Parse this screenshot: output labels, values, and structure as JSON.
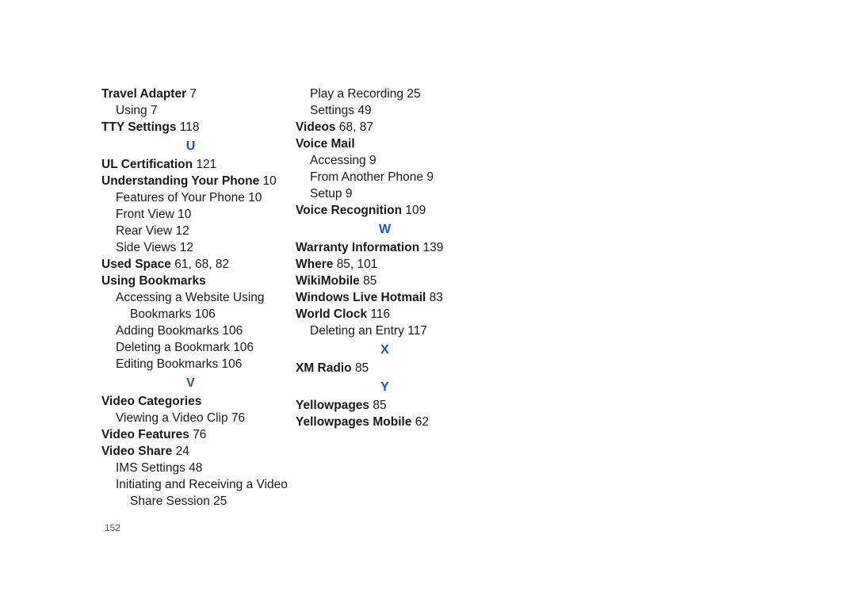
{
  "col1": {
    "travel_adapter": {
      "label": "Travel Adapter",
      "page": "7"
    },
    "travel_adapter_using": {
      "label": "Using",
      "page": "7"
    },
    "tty_settings": {
      "label": "TTY Settings",
      "page": "118"
    },
    "heading_u": "U",
    "ul_certification": {
      "label": "UL Certification",
      "page": "121"
    },
    "understanding": {
      "label": "Understanding Your Phone",
      "page": "10"
    },
    "understanding_features": {
      "label": "Features of Your Phone",
      "page": "10"
    },
    "understanding_front": {
      "label": "Front View",
      "page": "10"
    },
    "understanding_rear": {
      "label": "Rear View",
      "page": "12"
    },
    "understanding_side": {
      "label": "Side Views",
      "page": "12"
    },
    "used_space": {
      "label": "Used Space",
      "pages": "61, 68, 82"
    },
    "using_bookmarks": {
      "label": "Using Bookmarks"
    },
    "using_bookmarks_access_l1": "Accessing a Website Using",
    "using_bookmarks_access_l2": {
      "label": "Bookmarks",
      "page": "106"
    },
    "using_bookmarks_adding": {
      "label": "Adding Bookmarks",
      "page": "106"
    },
    "using_bookmarks_deleting": {
      "label": "Deleting a Bookmark",
      "page": "106"
    },
    "using_bookmarks_editing": {
      "label": "Editing Bookmarks",
      "page": "106"
    },
    "heading_v": "V",
    "video_categories": {
      "label": "Video Categories"
    },
    "video_categories_viewing": {
      "label": "Viewing a Video Clip",
      "page": "76"
    },
    "video_features": {
      "label": "Video Features",
      "page": "76"
    },
    "video_share": {
      "label": "Video Share",
      "page": "24"
    },
    "video_share_ims": {
      "label": "IMS Settings",
      "page": "48"
    },
    "video_share_init_l1": "Initiating and Receiving a Video",
    "video_share_init_l2": {
      "label": "Share Session",
      "page": "25"
    }
  },
  "col2": {
    "play_recording": {
      "label": "Play a Recording",
      "page": "25"
    },
    "settings": {
      "label": "Settings",
      "page": "49"
    },
    "videos": {
      "label": "Videos",
      "pages": "68, 87"
    },
    "voice_mail": {
      "label": "Voice Mail"
    },
    "voice_mail_accessing": {
      "label": "Accessing",
      "page": "9"
    },
    "voice_mail_another": {
      "label": "From Another Phone",
      "page": "9"
    },
    "voice_mail_setup": {
      "label": "Setup",
      "page": "9"
    },
    "voice_recognition": {
      "label": "Voice Recognition",
      "page": "109"
    },
    "heading_w": "W",
    "warranty": {
      "label": "Warranty Information",
      "page": "139"
    },
    "where": {
      "label": "Where",
      "pages": "85, 101"
    },
    "wikimobile": {
      "label": "WikiMobile",
      "page": "85"
    },
    "windows_hotmail": {
      "label": "Windows Live Hotmail",
      "page": "83"
    },
    "world_clock": {
      "label": "World Clock",
      "page": "116"
    },
    "world_clock_deleting": {
      "label": "Deleting an Entry",
      "page": "117"
    },
    "heading_x": "X",
    "xm_radio": {
      "label": "XM Radio",
      "page": "85"
    },
    "heading_y": "Y",
    "yellowpages": {
      "label": "Yellowpages",
      "page": "85"
    },
    "yellowpages_mobile": {
      "label": "Yellowpages Mobile",
      "page": "62"
    }
  },
  "page_number": "152",
  "colors": {
    "heading_color": "#1858c9",
    "text_color": "#1a1a1a",
    "background": "#ffffff"
  },
  "typography": {
    "body_fontsize": 15.5,
    "heading_fontsize": 16,
    "line_height": 21,
    "font_family": "Arial"
  }
}
